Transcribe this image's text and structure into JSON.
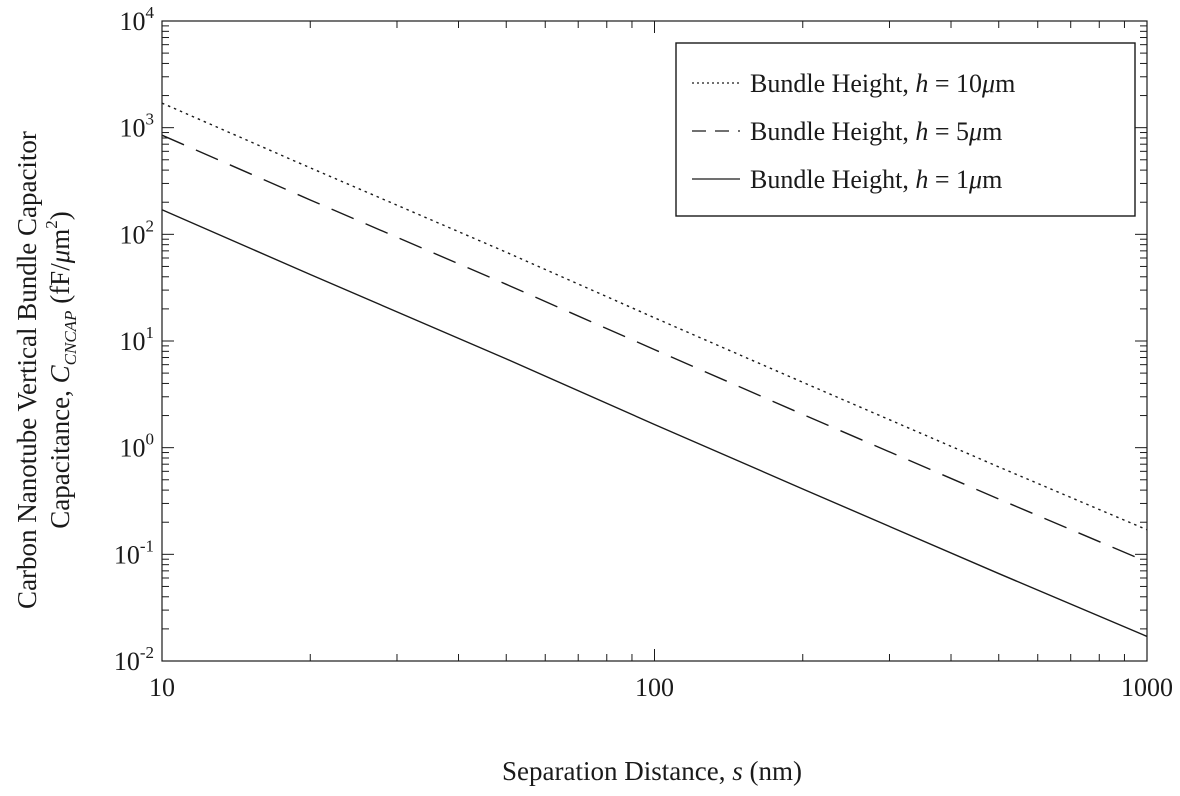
{
  "chart_data": {
    "type": "line",
    "x_scale": "log",
    "y_scale": "log",
    "xlim": [
      10,
      1000
    ],
    "ylim": [
      0.01,
      10000
    ],
    "grid": false,
    "legend_position": "top-right",
    "xlabel": {
      "text": "Separation Distance, ",
      "symbol": "s",
      "unit": " (nm)"
    },
    "ylabel": {
      "line1": "Carbon Nanotube Vertical Bundle Capacitor",
      "line2_prefix": "Capacitance, ",
      "symbol": "C",
      "symbol_sub": "CNCAP",
      "unit_prefix": " (fF/",
      "unit_mu": "μ",
      "unit_m": "m",
      "unit_exp": "2",
      "unit_suffix": ")"
    },
    "x_ticks": [
      {
        "value": 10,
        "label": "10"
      },
      {
        "value": 100,
        "label": "100"
      },
      {
        "value": 1000,
        "label": "1000"
      }
    ],
    "y_ticks": [
      {
        "value": 0.01,
        "base": "10",
        "exp": "-2"
      },
      {
        "value": 0.1,
        "base": "10",
        "exp": "-1"
      },
      {
        "value": 1,
        "base": "10",
        "exp": "0"
      },
      {
        "value": 10,
        "base": "10",
        "exp": "1"
      },
      {
        "value": 100,
        "base": "10",
        "exp": "2"
      },
      {
        "value": 1000,
        "base": "10",
        "exp": "3"
      },
      {
        "value": 10000,
        "base": "10",
        "exp": "4"
      }
    ],
    "series": [
      {
        "name_prefix": "Bundle Height, ",
        "name_symbol": "h",
        "name_suffix_eq": " = 10",
        "name_mu": "μ",
        "name_unit": "m",
        "line_style": "dotted",
        "x": [
          10,
          20,
          50,
          100,
          200,
          500,
          1000
        ],
        "y": [
          1700,
          420,
          68,
          16.5,
          4.1,
          0.66,
          0.17
        ]
      },
      {
        "name_prefix": "Bundle Height, ",
        "name_symbol": "h",
        "name_suffix_eq": " = 5",
        "name_mu": "μ",
        "name_unit": "m",
        "line_style": "dashed",
        "x": [
          10,
          20,
          50,
          100,
          200,
          500,
          1000
        ],
        "y": [
          850,
          210,
          34,
          8.3,
          2.05,
          0.33,
          0.085
        ]
      },
      {
        "name_prefix": "Bundle Height, ",
        "name_symbol": "h",
        "name_suffix_eq": " = 1",
        "name_mu": "μ",
        "name_unit": "m",
        "line_style": "solid",
        "x": [
          10,
          20,
          50,
          100,
          200,
          500,
          1000
        ],
        "y": [
          170,
          42,
          6.8,
          1.65,
          0.41,
          0.066,
          0.017
        ]
      }
    ]
  }
}
